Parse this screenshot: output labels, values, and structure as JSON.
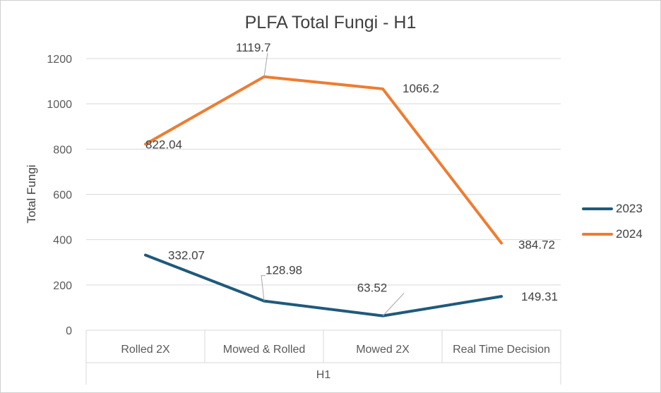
{
  "chart_data": {
    "type": "line",
    "title": "PLFA Total Fungi - H1",
    "xlabel": "H1",
    "ylabel": "Total Fungi",
    "categories": [
      "Rolled 2X",
      "Mowed & Rolled",
      "Mowed 2X",
      "Real Time Decision"
    ],
    "ylim": [
      0,
      1200
    ],
    "yticks": [
      0,
      200,
      400,
      600,
      800,
      1000,
      1200
    ],
    "grid": true,
    "legend_position": "right",
    "series": [
      {
        "name": "2023",
        "color": "#1f5a7a",
        "values": [
          332.07,
          128.98,
          63.52,
          149.31
        ],
        "labels": [
          "332.07",
          "128.98",
          "63.52",
          "149.31"
        ]
      },
      {
        "name": "2024",
        "color": "#ed7d31",
        "values": [
          822.04,
          1119.7,
          1066.2,
          384.72
        ],
        "labels": [
          "822.04",
          "1119.7",
          "1066.2",
          "384.72"
        ]
      }
    ]
  }
}
